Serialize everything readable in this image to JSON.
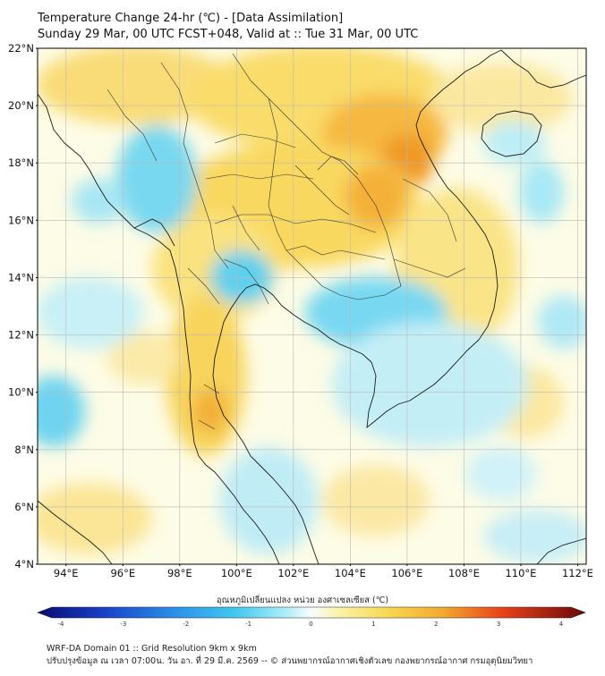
{
  "title": {
    "line1": "Temperature Change 24-hr (℃) - [Data Assimilation]",
    "line2": "Sunday 29 Mar, 00 UTC FCST+048, Valid at :: Tue 31 Mar, 00 UTC"
  },
  "map": {
    "lat_ticks": [
      "22°N",
      "20°N",
      "18°N",
      "16°N",
      "14°N",
      "12°N",
      "10°N",
      "8°N",
      "6°N",
      "4°N"
    ],
    "lon_ticks": [
      "94°E",
      "96°E",
      "98°E",
      "100°E",
      "102°E",
      "104°E",
      "106°E",
      "108°E",
      "110°E",
      "112°E"
    ],
    "lat_range": [
      4,
      22
    ],
    "lon_range": [
      93,
      112.3
    ]
  },
  "colorbar": {
    "label": "อุณหภูมิเปลี่ยนแปลง หน่วย องศาเซลเซียส (℃)",
    "ticks": [
      "-4",
      "-3",
      "-2",
      "-1",
      "0",
      "1",
      "2",
      "3",
      "4"
    ],
    "range": [
      -4,
      4
    ]
  },
  "footer": {
    "line1": "WRF-DA Domain 01 :: Grid Resolution 9km x 9km",
    "line2": "ปรับปรุงข้อมูล ณ เวลา 07:00น. วัน อา. ที่ 29 มี.ค. 2569 -- © ส่วนพยากรณ์อากาศเชิงตัวเลข กองพยากรณ์อากาศ กรมอุตุนิยมวิทยา"
  },
  "colors": {
    "ocean_base": "#fdfde8",
    "warm_light": "#fbe99a",
    "warm": "#f8c840",
    "hot": "#f0a030",
    "cool_light": "#c8f0f8",
    "cool": "#5fd6ef",
    "coast": "#1a1a1a",
    "grid": "#b8b8b8"
  }
}
